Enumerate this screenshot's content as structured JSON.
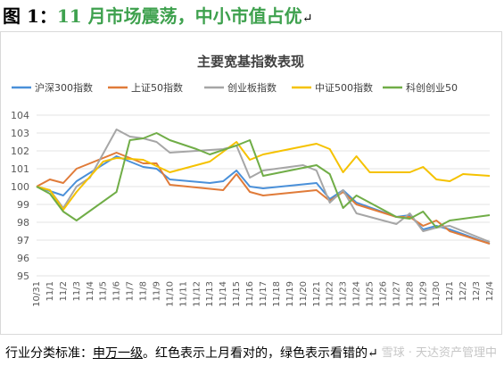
{
  "heading": {
    "label": "图 1：",
    "title": "11 月市场震荡，中小市值占优",
    "return_mark": "↵"
  },
  "chart_data": {
    "type": "line",
    "title": "主要宽基指数表现",
    "xlabel": "",
    "ylabel": "",
    "ylim": [
      95,
      104
    ],
    "yticks": [
      95,
      96,
      97,
      98,
      99,
      100,
      101,
      102,
      103,
      104
    ],
    "grid": true,
    "legend_position": "top",
    "x": [
      "10/31",
      "11/1",
      "11/2",
      "11/3",
      "11/4",
      "11/5",
      "11/6",
      "11/7",
      "11/8",
      "11/9",
      "11/10",
      "11/11",
      "11/12",
      "11/13",
      "11/14",
      "11/15",
      "11/16",
      "11/17",
      "11/18",
      "11/19",
      "11/20",
      "11/21",
      "11/22",
      "11/23",
      "11/24",
      "11/25",
      "11/26",
      "11/27",
      "11/28",
      "11/29",
      "11/30",
      "12/1",
      "12/2",
      "12/3",
      "12/4"
    ],
    "series": [
      {
        "name": "沪深300指数",
        "color": "#4a90d9",
        "points": [
          [
            0,
            100.0
          ],
          [
            2,
            99.5
          ],
          [
            3,
            100.3
          ],
          [
            6,
            101.7
          ],
          [
            8,
            101.1
          ],
          [
            9,
            101.0
          ],
          [
            10,
            100.4
          ],
          [
            13,
            100.2
          ],
          [
            14,
            100.3
          ],
          [
            15,
            100.9
          ],
          [
            16,
            100.0
          ],
          [
            17,
            99.9
          ],
          [
            21,
            100.2
          ],
          [
            22,
            99.3
          ],
          [
            23,
            99.8
          ],
          [
            24,
            99.1
          ],
          [
            27,
            98.3
          ],
          [
            28,
            98.4
          ],
          [
            29,
            97.6
          ],
          [
            30,
            97.8
          ],
          [
            31,
            97.6
          ],
          [
            34,
            96.8
          ]
        ]
      },
      {
        "name": "上证50指数",
        "color": "#e07b39",
        "points": [
          [
            0,
            100.0
          ],
          [
            1,
            100.4
          ],
          [
            2,
            100.2
          ],
          [
            3,
            101.0
          ],
          [
            6,
            101.9
          ],
          [
            8,
            101.3
          ],
          [
            9,
            101.3
          ],
          [
            10,
            100.1
          ],
          [
            14,
            99.8
          ],
          [
            15,
            100.7
          ],
          [
            16,
            99.7
          ],
          [
            17,
            99.5
          ],
          [
            21,
            99.8
          ],
          [
            22,
            99.2
          ],
          [
            23,
            99.7
          ],
          [
            24,
            99.0
          ],
          [
            27,
            98.3
          ],
          [
            28,
            98.3
          ],
          [
            29,
            97.8
          ],
          [
            30,
            98.1
          ],
          [
            31,
            97.5
          ],
          [
            34,
            96.8
          ]
        ]
      },
      {
        "name": "创业板指数",
        "color": "#a6a6a6",
        "points": [
          [
            0,
            100.0
          ],
          [
            1,
            99.8
          ],
          [
            2,
            98.8
          ],
          [
            3,
            100.0
          ],
          [
            4,
            100.5
          ],
          [
            6,
            103.2
          ],
          [
            7,
            102.8
          ],
          [
            8,
            102.7
          ],
          [
            9,
            102.5
          ],
          [
            10,
            101.9
          ],
          [
            14,
            102.1
          ],
          [
            15,
            102.3
          ],
          [
            16,
            100.5
          ],
          [
            17,
            100.9
          ],
          [
            20,
            101.2
          ],
          [
            21,
            100.9
          ],
          [
            22,
            99.1
          ],
          [
            23,
            99.8
          ],
          [
            24,
            98.5
          ],
          [
            27,
            97.9
          ],
          [
            28,
            98.5
          ],
          [
            29,
            97.5
          ],
          [
            30,
            97.7
          ],
          [
            31,
            97.8
          ],
          [
            34,
            96.9
          ]
        ]
      },
      {
        "name": "中证500指数",
        "color": "#f5c200",
        "points": [
          [
            0,
            100.0
          ],
          [
            1,
            99.8
          ],
          [
            2,
            98.7
          ],
          [
            3,
            99.7
          ],
          [
            5,
            101.4
          ],
          [
            6,
            101.6
          ],
          [
            8,
            101.5
          ],
          [
            10,
            100.8
          ],
          [
            13,
            101.4
          ],
          [
            15,
            102.5
          ],
          [
            16,
            101.5
          ],
          [
            17,
            101.8
          ],
          [
            21,
            102.4
          ],
          [
            22,
            102.1
          ],
          [
            23,
            100.8
          ],
          [
            24,
            101.7
          ],
          [
            25,
            100.8
          ],
          [
            28,
            100.8
          ],
          [
            29,
            101.1
          ],
          [
            30,
            100.4
          ],
          [
            31,
            100.3
          ],
          [
            32,
            100.7
          ],
          [
            34,
            100.6
          ]
        ]
      },
      {
        "name": "科创创业50",
        "color": "#70ad47",
        "points": [
          [
            0,
            100.0
          ],
          [
            1,
            99.6
          ],
          [
            2,
            98.6
          ],
          [
            3,
            98.1
          ],
          [
            6,
            99.7
          ],
          [
            7,
            102.6
          ],
          [
            8,
            102.7
          ],
          [
            9,
            103.0
          ],
          [
            10,
            102.6
          ],
          [
            12,
            102.1
          ],
          [
            13,
            101.8
          ],
          [
            15,
            102.3
          ],
          [
            16,
            102.6
          ],
          [
            17,
            100.6
          ],
          [
            21,
            101.2
          ],
          [
            22,
            100.7
          ],
          [
            23,
            98.8
          ],
          [
            24,
            99.5
          ],
          [
            27,
            98.3
          ],
          [
            28,
            98.2
          ],
          [
            29,
            98.6
          ],
          [
            30,
            97.7
          ],
          [
            31,
            98.1
          ],
          [
            34,
            98.4
          ]
        ]
      }
    ]
  },
  "note": {
    "prefix": "行业分类标准：",
    "link": "申万一级",
    "suffix": "。红色表示上月看对的，绿色表示看错的↵"
  },
  "watermark": "雪球 · 天达资产管理中"
}
